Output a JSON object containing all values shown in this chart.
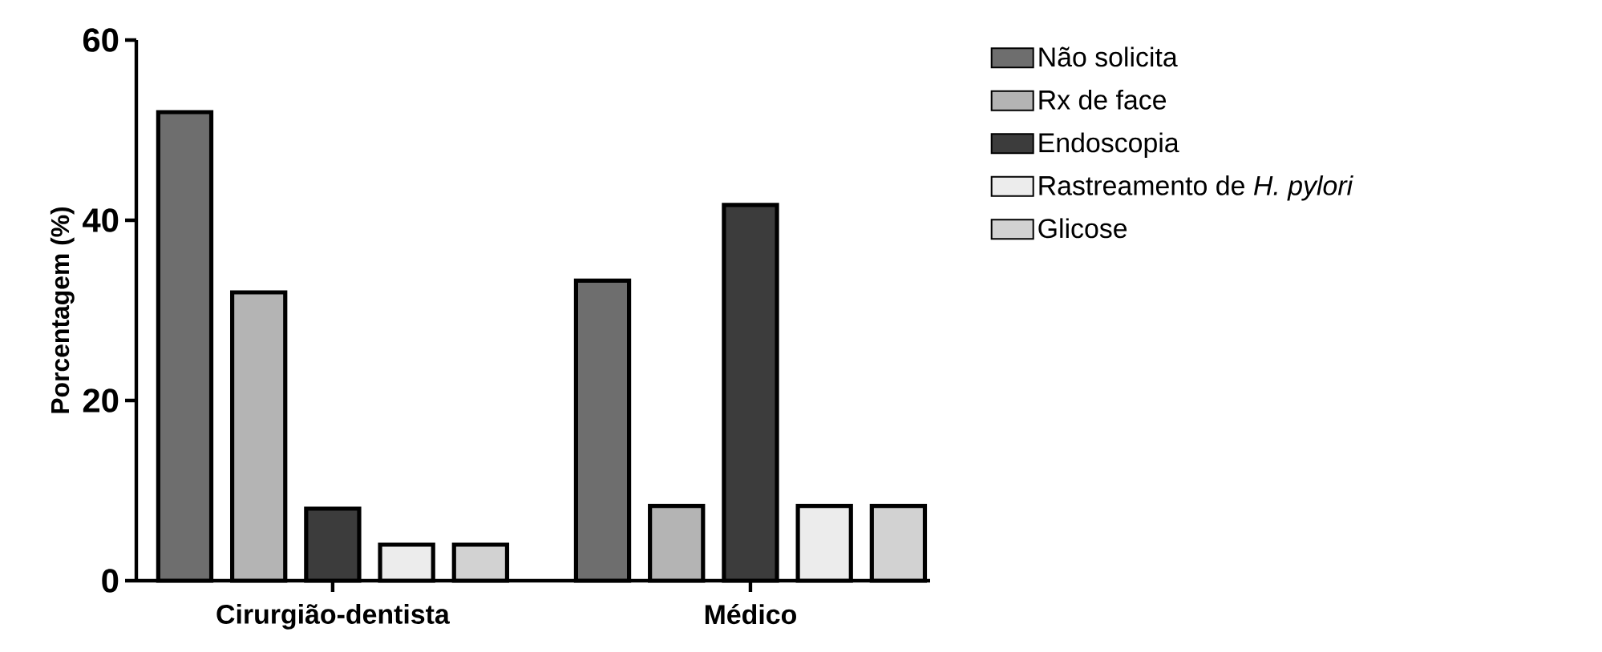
{
  "chart_data": {
    "type": "bar",
    "ylabel": "Porcentagem (%)",
    "categories": [
      "Cirurgião-dentista",
      "Médico"
    ],
    "series": [
      {
        "name": "Não solicita",
        "color": "#6e6e6e",
        "values": [
          52,
          33.3
        ]
      },
      {
        "name": "Rx de face",
        "color": "#b4b4b4",
        "values": [
          32,
          8.3
        ]
      },
      {
        "name": "Endoscopia",
        "color": "#3c3c3c",
        "values": [
          8,
          41.7
        ]
      },
      {
        "name": "Rastreamento de *H. pylori*",
        "color": "#ececec",
        "values": [
          4,
          8.3
        ]
      },
      {
        "name": "Glicose",
        "color": "#d2d2d2",
        "values": [
          4,
          8.3
        ]
      }
    ],
    "ylim": [
      0,
      60
    ],
    "yticks": [
      0,
      20,
      40,
      60
    ],
    "legend": "right"
  }
}
